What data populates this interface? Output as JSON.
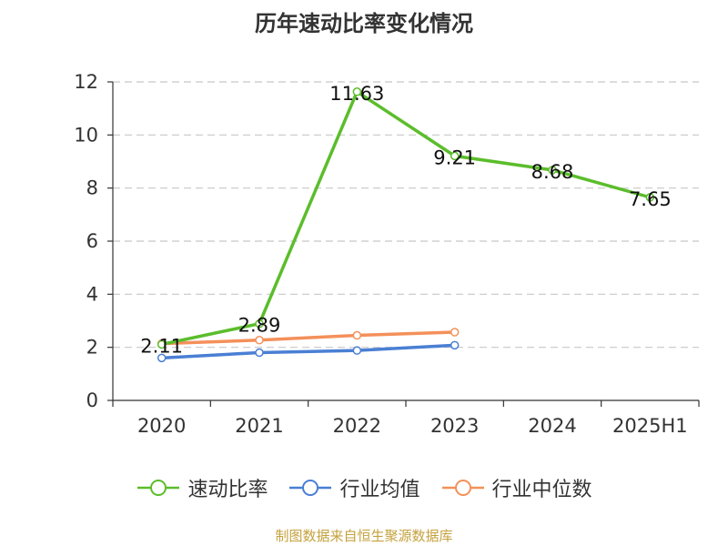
{
  "chart_data": {
    "type": "line",
    "title": "历年速动比率变化情况",
    "categories": [
      "2020",
      "2021",
      "2022",
      "2023",
      "2024",
      "2025H1"
    ],
    "ylim": [
      0,
      12
    ],
    "yticks": [
      "0",
      "2",
      "4",
      "6",
      "8",
      "10",
      "12"
    ],
    "grid": true,
    "legend_position": "bottom",
    "series": [
      {
        "name": "速动比率",
        "color": "#5bbd2b",
        "values": [
          2.11,
          2.89,
          11.63,
          9.21,
          8.68,
          7.65
        ],
        "labels": [
          "2.11",
          "2.89",
          "11.63",
          "9.21",
          "8.68",
          "7.65"
        ]
      },
      {
        "name": "行业均值",
        "color": "#4a7fd4",
        "values": [
          1.6,
          1.8,
          1.88,
          2.08,
          null,
          null
        ]
      },
      {
        "name": "行业中位数",
        "color": "#f4905a",
        "values": [
          2.14,
          2.27,
          2.45,
          2.57,
          null,
          null
        ]
      }
    ]
  },
  "source_note": "制图数据来自恒生聚源数据库"
}
